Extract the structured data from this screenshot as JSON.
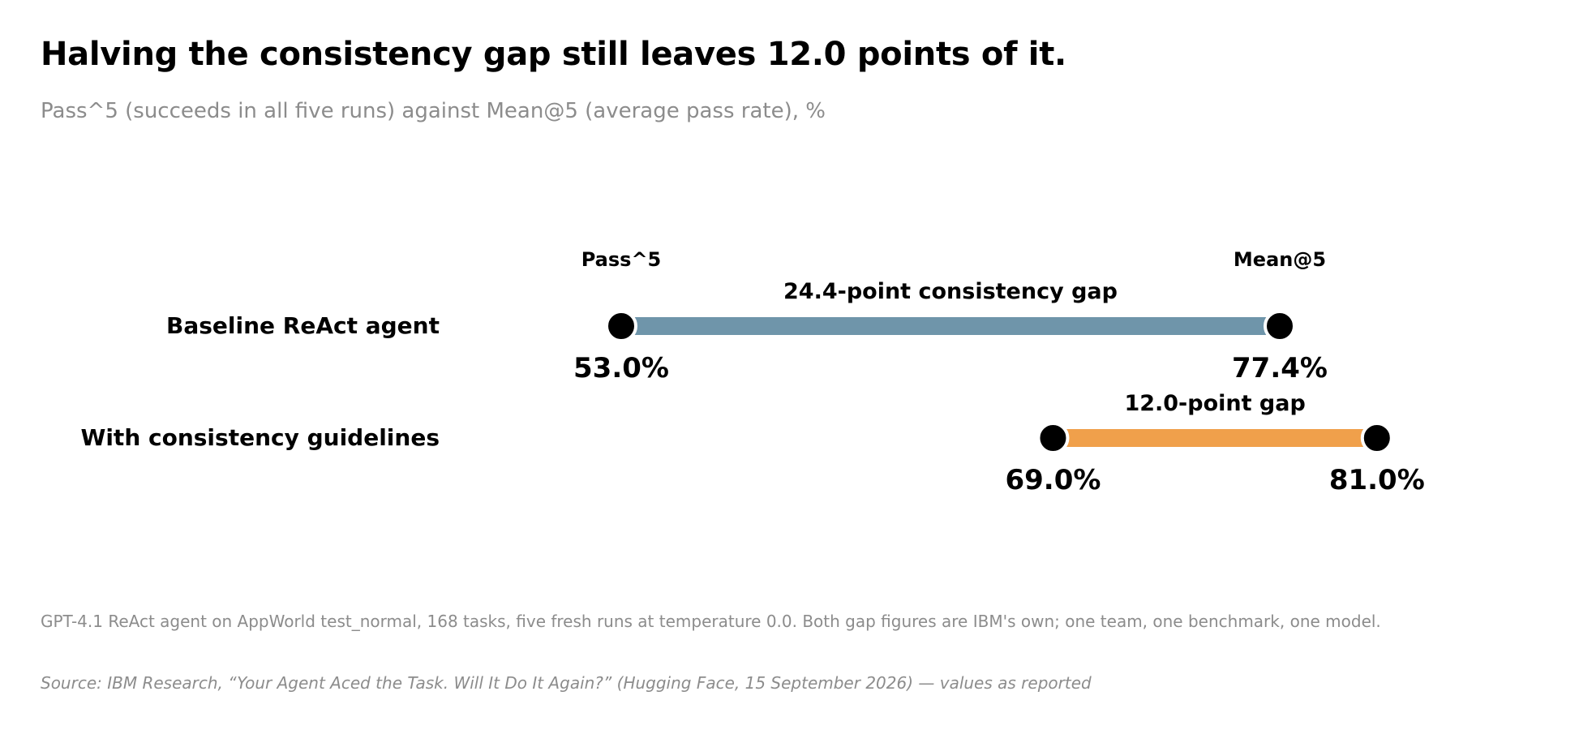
{
  "title": "Halving the consistency gap still leaves 12.0 points of it.",
  "subtitle": "Pass^5 (succeeds in all five runs) against Mean@5 (average pass rate), %",
  "note": "GPT-4.1 ReAct agent on AppWorld test_normal, 168 tasks, five fresh runs at temperature 0.0. Both gap figures are IBM's own; one team, one benchmark, one model.",
  "source": "Source: IBM Research, “Your Agent Aced the Task. Will It Do It Again?” (Hugging Face, 15 September 2026) — values as reported",
  "chart_data": {
    "type": "dumbbell",
    "end_labels": {
      "start": "Pass^5",
      "end": "Mean@5"
    },
    "rows": [
      {
        "label": "Baseline ReAct agent",
        "start": 53.0,
        "end": 77.4,
        "start_label": "53.0%",
        "end_label": "77.4%",
        "gap_label": "24.4-point consistency gap",
        "color": "#6f95aa"
      },
      {
        "label": "With consistency guidelines",
        "start": 69.0,
        "end": 81.0,
        "start_label": "69.0%",
        "end_label": "81.0%",
        "gap_label": "12.0-point gap",
        "color": "#f0a04b"
      }
    ],
    "dot_color": "#000000"
  }
}
